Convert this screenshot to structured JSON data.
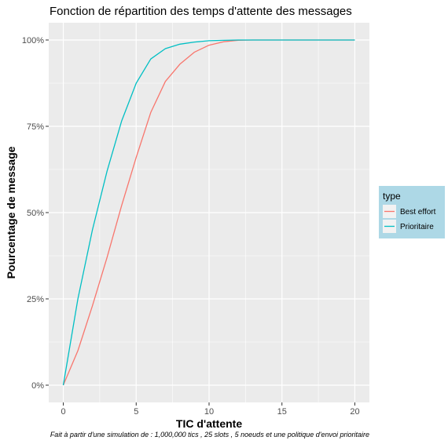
{
  "chart_data": {
    "type": "line",
    "title": "Fonction de répartition des temps d'attente des messages",
    "xlabel": "TIC d'attente",
    "ylabel": "Pourcentage de message",
    "caption": "Fait à partir d'une simulation de : 1,000,000 tics , 25 slots , 5 noeuds et une politique d'envoi prioritaire",
    "xlim": [
      -1,
      21
    ],
    "ylim": [
      -0.05,
      1.05
    ],
    "x_ticks": [
      0,
      5,
      10,
      15,
      20
    ],
    "x_tick_labels": [
      "0",
      "5",
      "10",
      "15",
      "20"
    ],
    "y_ticks": [
      0,
      0.25,
      0.5,
      0.75,
      1.0
    ],
    "y_tick_labels": [
      "0%",
      "25%",
      "50%",
      "75%",
      "100%"
    ],
    "grid": true,
    "legend": {
      "title": "type",
      "position": "right"
    },
    "series": [
      {
        "name": "Best effort",
        "color": "#F8766D",
        "x": [
          0,
          1,
          2,
          3,
          4,
          5,
          6,
          7,
          8,
          9,
          10,
          11,
          12,
          13,
          14,
          15,
          16,
          17,
          18,
          19,
          20
        ],
        "y": [
          0,
          0.1,
          0.23,
          0.37,
          0.52,
          0.66,
          0.79,
          0.88,
          0.93,
          0.965,
          0.985,
          0.995,
          0.999,
          1.0,
          1.0,
          1.0,
          1.0,
          1.0,
          1.0,
          1.0,
          1.0
        ]
      },
      {
        "name": "Prioritaire",
        "color": "#00BFC4",
        "x": [
          0,
          1,
          2,
          3,
          4,
          5,
          6,
          7,
          8,
          9,
          10,
          11,
          12,
          13,
          14,
          15,
          16,
          17,
          18,
          19,
          20
        ],
        "y": [
          0,
          0.25,
          0.45,
          0.62,
          0.765,
          0.875,
          0.945,
          0.975,
          0.988,
          0.994,
          0.998,
          0.999,
          1.0,
          1.0,
          1.0,
          1.0,
          1.0,
          1.0,
          1.0,
          1.0,
          1.0
        ]
      }
    ]
  }
}
